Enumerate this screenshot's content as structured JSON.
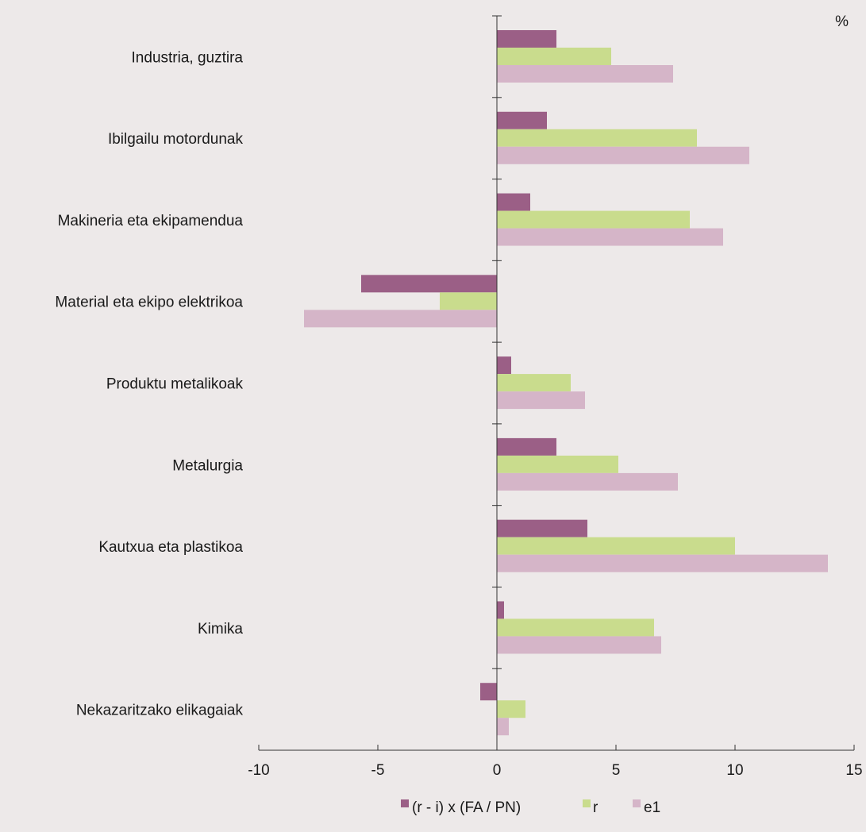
{
  "chart_data": {
    "type": "bar",
    "orientation": "horizontal",
    "unit": "%",
    "categories": [
      "Industria, guztira",
      "Ibilgailu motordunak",
      "Makineria eta ekipamendua",
      "Material eta ekipo elektrikoa",
      "Produktu metalikoak",
      "Metalurgia ",
      "Kautxua eta plastikoa",
      "Kimika",
      "Nekazaritzako elikagaiak"
    ],
    "series": [
      {
        "name": "(r - i) x (FA / PN)",
        "color": "#9b5f86",
        "values": [
          2.5,
          2.1,
          1.4,
          -5.7,
          0.6,
          2.5,
          3.8,
          0.3,
          -0.7
        ]
      },
      {
        "name": "r",
        "color": "#c9dc8d",
        "values": [
          4.8,
          8.4,
          8.1,
          -2.4,
          3.1,
          5.1,
          10.0,
          6.6,
          1.2
        ]
      },
      {
        "name": "e1",
        "color": "#d5b5c8",
        "values": [
          7.4,
          10.6,
          9.5,
          -8.1,
          3.7,
          7.6,
          13.9,
          6.9,
          0.5
        ]
      }
    ],
    "xlim": [
      -10,
      15
    ],
    "xticks": [
      -10,
      -5,
      0,
      5,
      10,
      15
    ],
    "xtick_labels": [
      "-10",
      "-5",
      "0",
      "5",
      "10",
      "15"
    ],
    "title": "",
    "xlabel": "",
    "ylabel": "",
    "grid": false,
    "legend_position": "bottom"
  }
}
